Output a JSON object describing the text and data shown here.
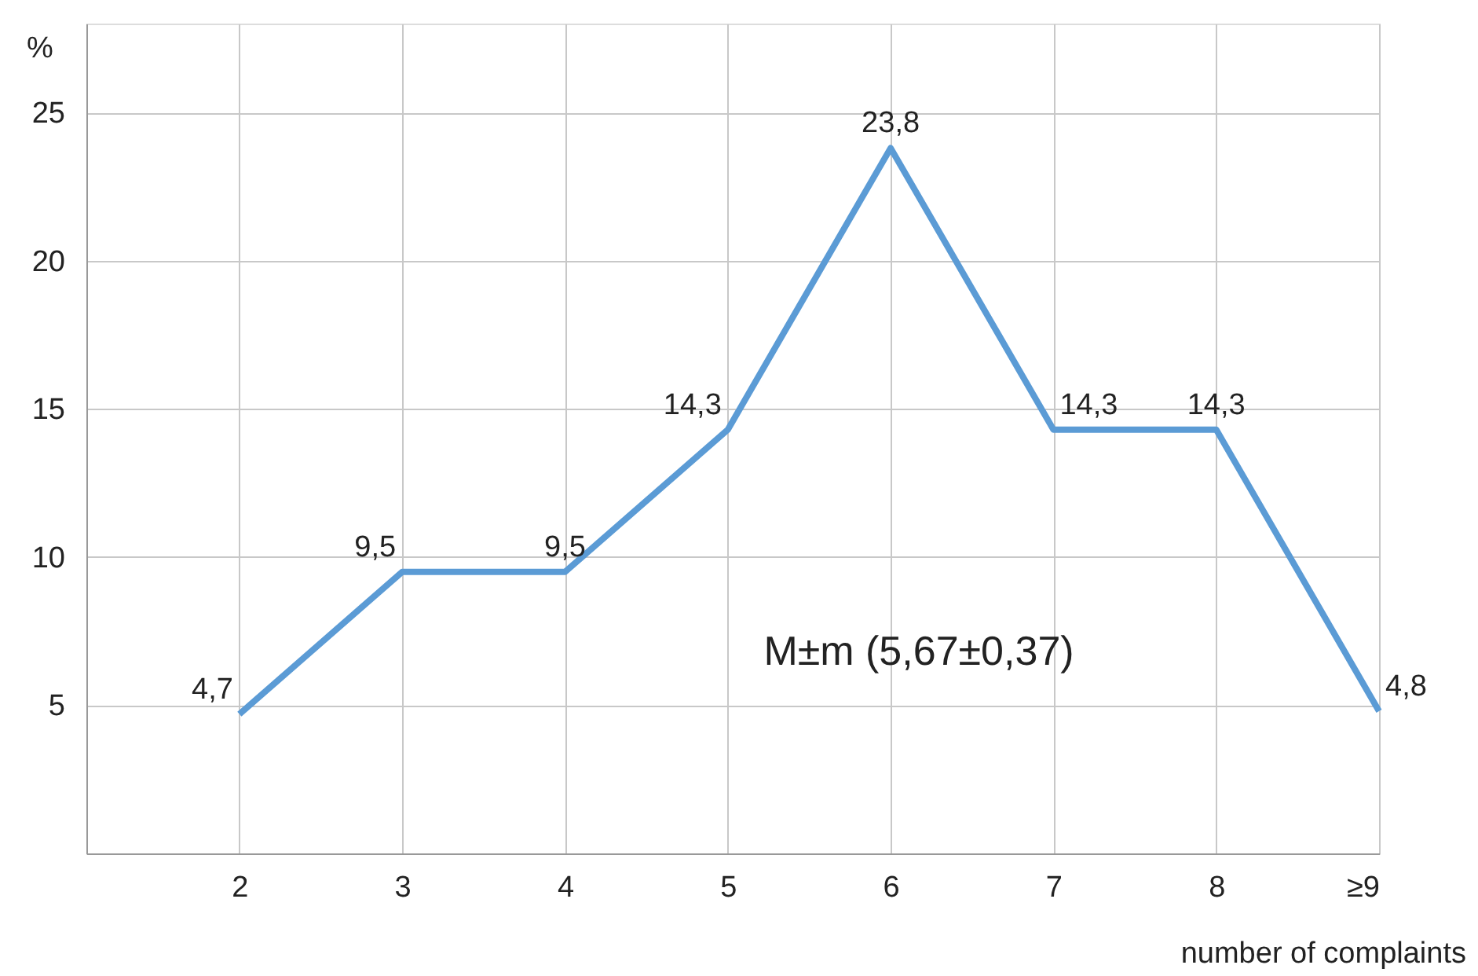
{
  "chart_data": {
    "type": "line",
    "xlabel": "number of complaints",
    "ylabel": "%",
    "categories": [
      "2",
      "3",
      "4",
      "5",
      "6",
      "7",
      "8",
      "≥9"
    ],
    "series": [
      {
        "color": "#5b9bd5",
        "values": [
          4.7,
          9.5,
          9.5,
          14.3,
          23.8,
          14.3,
          14.3,
          4.8
        ],
        "value_labels": [
          "4,7",
          "9,5",
          "9,5",
          "14,3",
          "23,8",
          "14,3",
          "14,3",
          "4,8"
        ]
      }
    ],
    "ylim": [
      0,
      28
    ],
    "yticks": [
      5,
      10,
      15,
      20,
      25
    ],
    "grid": true,
    "marker": "none",
    "line_style": "solid",
    "annotations": [
      "M±m (5,67±0,37)"
    ]
  }
}
